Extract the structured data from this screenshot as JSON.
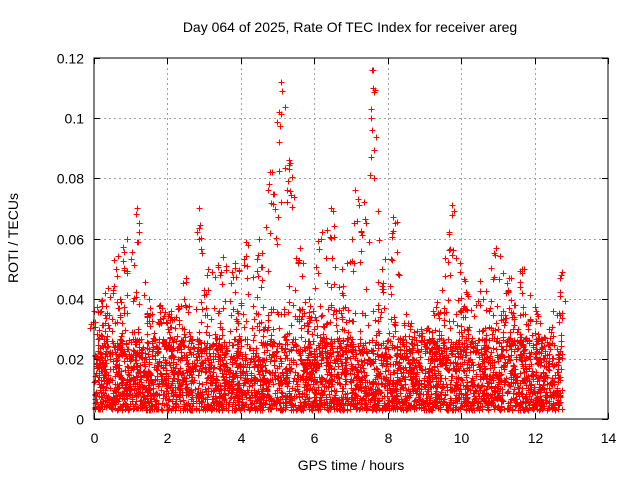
{
  "chart_data": {
    "type": "scatter",
    "title": "Day 064 of 2025, Rate Of TEC Index for receiver areg",
    "xlabel": "GPS time / hours",
    "ylabel": "ROTI / TECUs",
    "xlim": [
      0,
      14
    ],
    "ylim": [
      0,
      0.12
    ],
    "x_ticks": [
      0,
      2,
      4,
      6,
      8,
      10,
      12,
      14
    ],
    "y_ticks": [
      0,
      0.02,
      0.04,
      0.06,
      0.08,
      0.1,
      0.12
    ],
    "x_tick_labels": [
      "0",
      "2",
      "4",
      "6",
      "8",
      "10",
      "12",
      "14"
    ],
    "y_tick_labels": [
      "0",
      "0.02",
      "0.04",
      "0.06",
      "0.08",
      "0.1",
      "0.12"
    ],
    "grid": true,
    "marker": "+",
    "color": "#ff0000",
    "x_data_range": [
      0,
      12.75
    ],
    "series": [
      {
        "name": "ROTI",
        "note": "dense point cloud mostly between 0.003 and 0.03; envelope and highlighted peaks below",
        "envelope": [
          {
            "x": 0.0,
            "y": 0.036
          },
          {
            "x": 0.3,
            "y": 0.042
          },
          {
            "x": 0.55,
            "y": 0.053
          },
          {
            "x": 0.9,
            "y": 0.06
          },
          {
            "x": 1.15,
            "y": 0.068
          },
          {
            "x": 1.5,
            "y": 0.04
          },
          {
            "x": 1.8,
            "y": 0.038
          },
          {
            "x": 2.1,
            "y": 0.036
          },
          {
            "x": 2.5,
            "y": 0.047
          },
          {
            "x": 2.85,
            "y": 0.07
          },
          {
            "x": 3.1,
            "y": 0.05
          },
          {
            "x": 3.5,
            "y": 0.054
          },
          {
            "x": 3.85,
            "y": 0.052
          },
          {
            "x": 4.15,
            "y": 0.059
          },
          {
            "x": 4.5,
            "y": 0.06
          },
          {
            "x": 4.8,
            "y": 0.082
          },
          {
            "x": 5.1,
            "y": 0.112
          },
          {
            "x": 5.35,
            "y": 0.085
          },
          {
            "x": 5.6,
            "y": 0.057
          },
          {
            "x": 5.85,
            "y": 0.04
          },
          {
            "x": 6.2,
            "y": 0.062
          },
          {
            "x": 6.45,
            "y": 0.07
          },
          {
            "x": 6.75,
            "y": 0.05
          },
          {
            "x": 7.1,
            "y": 0.076
          },
          {
            "x": 7.35,
            "y": 0.072
          },
          {
            "x": 7.6,
            "y": 0.116
          },
          {
            "x": 7.85,
            "y": 0.05
          },
          {
            "x": 8.15,
            "y": 0.067
          },
          {
            "x": 8.5,
            "y": 0.035
          },
          {
            "x": 8.9,
            "y": 0.03
          },
          {
            "x": 9.35,
            "y": 0.039
          },
          {
            "x": 9.75,
            "y": 0.071
          },
          {
            "x": 10.1,
            "y": 0.046
          },
          {
            "x": 10.5,
            "y": 0.046
          },
          {
            "x": 10.95,
            "y": 0.057
          },
          {
            "x": 11.3,
            "y": 0.047
          },
          {
            "x": 11.65,
            "y": 0.05
          },
          {
            "x": 12.05,
            "y": 0.036
          },
          {
            "x": 12.4,
            "y": 0.03
          },
          {
            "x": 12.75,
            "y": 0.049
          }
        ],
        "peaks": [
          {
            "x": 5.08,
            "y": 0.112
          },
          {
            "x": 5.05,
            "y": 0.102
          },
          {
            "x": 5.03,
            "y": 0.092
          },
          {
            "x": 7.58,
            "y": 0.116
          },
          {
            "x": 7.6,
            "y": 0.11
          },
          {
            "x": 7.55,
            "y": 0.103
          },
          {
            "x": 7.58,
            "y": 0.096
          },
          {
            "x": 7.55,
            "y": 0.087
          },
          {
            "x": 7.62,
            "y": 0.08
          },
          {
            "x": 4.85,
            "y": 0.082
          },
          {
            "x": 4.78,
            "y": 0.078
          },
          {
            "x": 5.3,
            "y": 0.086
          },
          {
            "x": 5.32,
            "y": 0.083
          },
          {
            "x": 5.28,
            "y": 0.079
          },
          {
            "x": 7.1,
            "y": 0.076
          },
          {
            "x": 7.2,
            "y": 0.073
          },
          {
            "x": 1.18,
            "y": 0.07
          },
          {
            "x": 2.85,
            "y": 0.07
          },
          {
            "x": 9.75,
            "y": 0.071
          },
          {
            "x": 9.8,
            "y": 0.069
          },
          {
            "x": 6.45,
            "y": 0.07
          },
          {
            "x": 6.5,
            "y": 0.069
          },
          {
            "x": 8.15,
            "y": 0.067
          },
          {
            "x": 8.2,
            "y": 0.065
          },
          {
            "x": 10.95,
            "y": 0.057
          },
          {
            "x": 11.35,
            "y": 0.047
          },
          {
            "x": 11.7,
            "y": 0.05
          },
          {
            "x": 12.75,
            "y": 0.049
          },
          {
            "x": 12.7,
            "y": 0.047
          }
        ]
      }
    ]
  }
}
